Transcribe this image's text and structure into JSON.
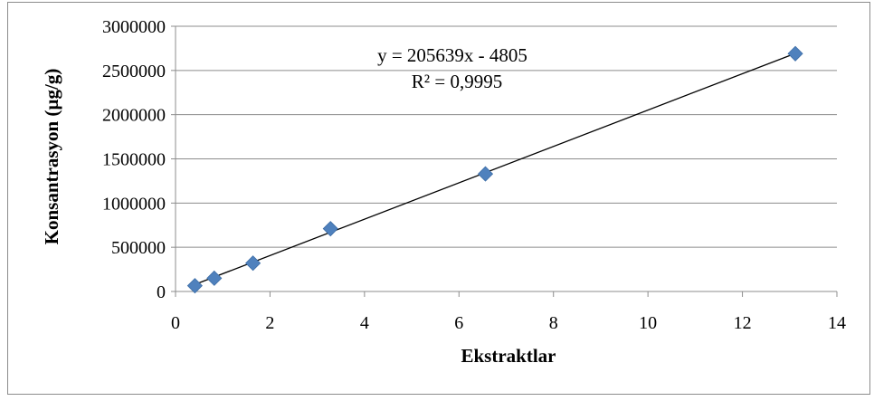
{
  "chart_data": {
    "type": "scatter",
    "xlabel": "Ekstraktlar",
    "ylabel": "Konsantrasyon (µg/g)",
    "xlim": [
      0,
      14
    ],
    "ylim": [
      0,
      3000000
    ],
    "xticks": [
      0,
      2,
      4,
      6,
      8,
      10,
      12,
      14
    ],
    "yticks": [
      0,
      500000,
      1000000,
      1500000,
      2000000,
      2500000,
      3000000
    ],
    "grid": "horizontal",
    "marker": "diamond",
    "marker_color": "#4F81BD",
    "trendline_color": "#000000",
    "points": [
      {
        "x": 0.41,
        "y": 65000
      },
      {
        "x": 0.82,
        "y": 150000
      },
      {
        "x": 1.64,
        "y": 320000
      },
      {
        "x": 3.28,
        "y": 710000
      },
      {
        "x": 6.56,
        "y": 1330000
      },
      {
        "x": 13.12,
        "y": 2690000
      }
    ],
    "trendline": {
      "slope": 205639,
      "intercept": -4805,
      "x_range": [
        0.41,
        13.12
      ],
      "equation": "y = 205639x - 4805",
      "r_squared": "R² = 0,9995"
    }
  }
}
